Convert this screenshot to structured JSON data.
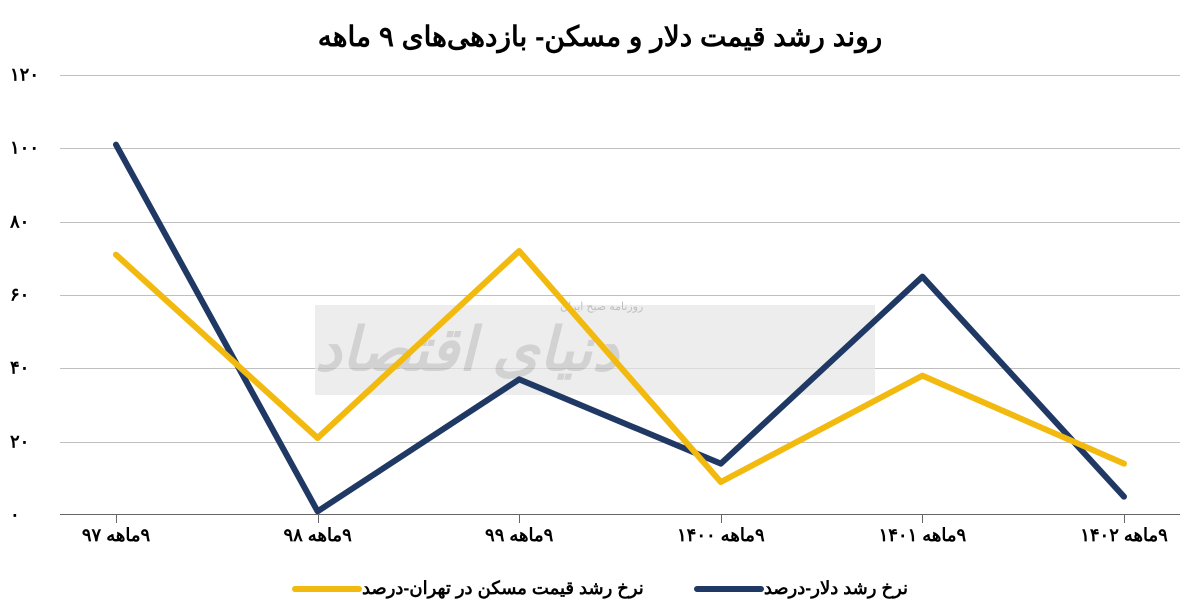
{
  "chart": {
    "type": "line",
    "title": "روند رشد قیمت دلار و مسکن- بازدهی‌های ۹ ماهه",
    "title_fontsize": 28,
    "background_color": "#ffffff",
    "grid_color": "#bfbfbf",
    "axis_color": "#666666",
    "text_color": "#000000",
    "label_fontsize": 18,
    "categories": [
      "۹ماهه ۹۷",
      "۹ماهه ۹۸",
      "۹ماهه ۹۹",
      "۹ماهه ۱۴۰۰",
      "۹ماهه ۱۴۰۱",
      "۹ماهه ۱۴۰۲"
    ],
    "ylim": [
      0,
      120
    ],
    "ytick_step": 20,
    "ytick_labels": [
      "۰",
      "۲۰",
      "۴۰",
      "۶۰",
      "۸۰",
      "۱۰۰",
      "۱۲۰"
    ],
    "series": [
      {
        "name": "نرخ رشد دلار-درصد",
        "color": "#1f3864",
        "line_width": 6,
        "values": [
          101,
          1,
          37,
          14,
          65,
          5
        ]
      },
      {
        "name": "نرخ رشد قیمت مسکن در تهران-درصد",
        "color": "#f2b90f",
        "line_width": 6,
        "values": [
          71,
          21,
          72,
          9,
          38,
          14
        ]
      }
    ],
    "watermark": {
      "text": "دنیای اقتصاد",
      "subtext": "روزنامه صبح ایران",
      "bg_color": "#e6e6e6",
      "text_color": "#bfbfbf"
    }
  }
}
